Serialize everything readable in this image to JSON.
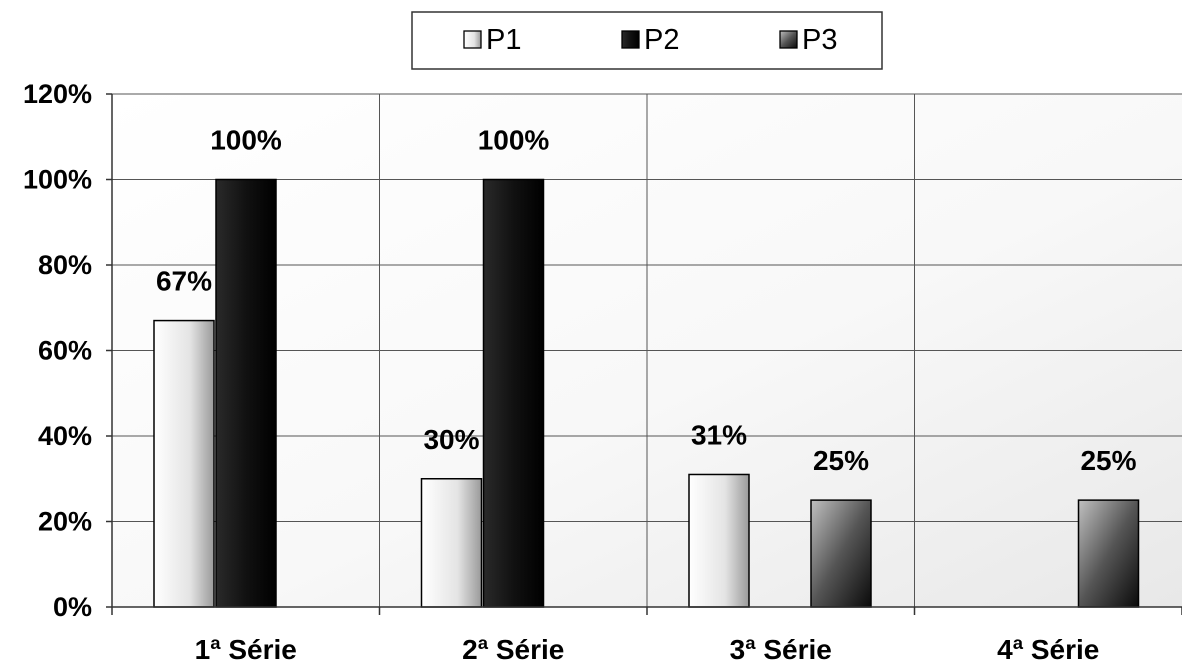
{
  "chart_data": {
    "type": "bar",
    "categories": [
      "1ª Série",
      "2ª Série",
      "3ª Série",
      "4ª Série"
    ],
    "series": [
      {
        "name": "P1",
        "values": [
          67,
          30,
          31,
          null
        ],
        "labels": [
          "67%",
          "30%",
          "31%",
          ""
        ],
        "color": "#e6e6e6"
      },
      {
        "name": "P2",
        "values": [
          100,
          100,
          null,
          null
        ],
        "labels": [
          "100%",
          "100%",
          "",
          ""
        ],
        "color": "#111111"
      },
      {
        "name": "P3",
        "values": [
          null,
          null,
          25,
          25
        ],
        "labels": [
          "",
          "",
          "25%",
          "25%"
        ],
        "color": "#555555"
      }
    ],
    "yticks": [
      "0%",
      "20%",
      "40%",
      "60%",
      "80%",
      "100%",
      "120%"
    ],
    "ylim": [
      0,
      120
    ],
    "grid": true,
    "legend": "top-center",
    "title": "",
    "xlabel": "",
    "ylabel": ""
  }
}
